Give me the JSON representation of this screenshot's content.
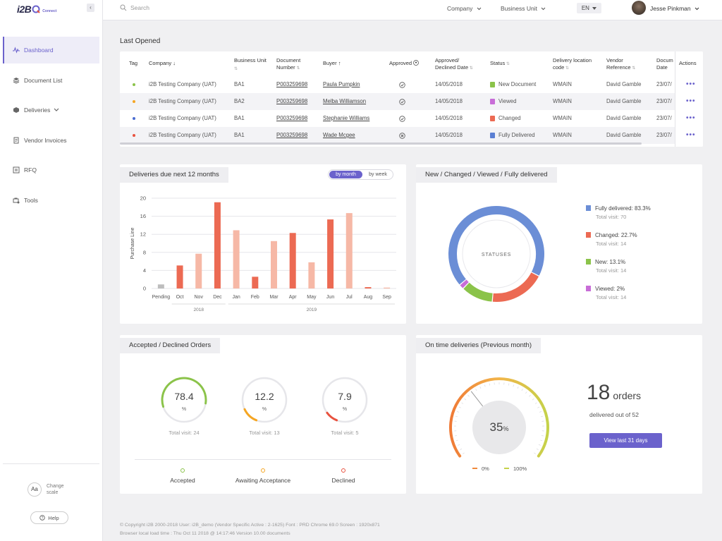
{
  "app": {
    "logo": "i2B",
    "logo_sub": "Connect",
    "collapse": "‹"
  },
  "sidebar": {
    "items": [
      {
        "label": "Dashboard",
        "icon": "pulse-icon",
        "active": true
      },
      {
        "label": "Document List",
        "icon": "stack-icon"
      },
      {
        "label": "Deliveries",
        "icon": "box-icon",
        "dropdown": true
      },
      {
        "label": "Vendor Invoices",
        "icon": "invoice-icon"
      },
      {
        "label": "RFQ",
        "icon": "rfq-icon"
      },
      {
        "label": "Tools",
        "icon": "tools-icon"
      }
    ],
    "scale_label": "Aa",
    "change_scale": "Change scale",
    "help": "Help"
  },
  "topbar": {
    "search_placeholder": "Search",
    "company": "Company",
    "business_unit": "Business Unit",
    "lang": "EN",
    "user": "Jesse Pinkman"
  },
  "last_opened": {
    "title": "Last Opened",
    "headers": {
      "tag": "Tag",
      "company": "Company",
      "business_unit": "Business Unit",
      "document_number": "Document Number",
      "buyer": "Buyer",
      "approved": "Approved",
      "approved_declined_date": "Approved/ Declined Date",
      "status": "Status",
      "delivery_location": "Delivery location code",
      "vendor_reference": "Vendor Reference",
      "document_date": "Docum Date",
      "actions": "Actions"
    },
    "rows": [
      {
        "tag_color": "#8bc34a",
        "company": "i2B Testing Company (UAT)",
        "bu": "BA1",
        "doc": "P003259698",
        "buyer": "Paula Pumpkin",
        "approved": "check",
        "date": "14/05/2018",
        "status": "New Document",
        "status_color": "#8bc34a",
        "location": "WMAIN",
        "vendor": "David Gamble",
        "docdate": "23/07/"
      },
      {
        "tag_color": "#f5a623",
        "company": "i2B Testing Company (UAT)",
        "bu": "BA2",
        "doc": "P003259698",
        "buyer": "Melba Williamson",
        "approved": "check",
        "date": "14/05/2018",
        "status": "Viewed",
        "status_color": "#c86dd7",
        "location": "WMAIN",
        "vendor": "David Gamble",
        "docdate": "23/07/"
      },
      {
        "tag_color": "#4a6cd1",
        "company": "i2B Testing Company (UAT)",
        "bu": "BA1",
        "doc": "P003259698",
        "buyer": "Stephanie Williams",
        "approved": "check",
        "date": "14/05/2018",
        "status": "Changed",
        "status_color": "#ec6a53",
        "location": "WMAIN",
        "vendor": "David Gamble",
        "docdate": "23/07/"
      },
      {
        "tag_color": "#e8523f",
        "company": "i2B Testing Company (UAT)",
        "bu": "BA1",
        "doc": "P003259698",
        "buyer": "Wade Mcgee",
        "approved": "cross",
        "date": "14/05/2018",
        "status": "Fully Delivered",
        "status_color": "#5b7fd3",
        "location": "WMAIN",
        "vendor": "David Gamble",
        "docdate": "23/07/"
      }
    ],
    "more": "•••"
  },
  "deliveries": {
    "title": "Deliveries due next 12 months",
    "toggle_on": "by month",
    "toggle_off": "by week"
  },
  "statuses": {
    "title": "New / Changed / Viewed / Fully delivered",
    "center": "STATUSES",
    "legend": [
      {
        "label": "Fully delivered: 83.3%",
        "sub": "Total visit: 70",
        "color": "#6b8ed6",
        "value": 83.3
      },
      {
        "label": "Changed: 22.7%",
        "sub": "Total visit: 14",
        "color": "#ec6a53",
        "value": 22.7
      },
      {
        "label": "New: 13.1%",
        "sub": "Total visit: 14",
        "color": "#8bc34a",
        "value": 13.1
      },
      {
        "label": "Viewed: 2%",
        "sub": "Total visit: 14",
        "color": "#c86dd7",
        "value": 2
      }
    ]
  },
  "accepted": {
    "title": "Accepted / Declined Orders",
    "gauges": [
      {
        "value": "78.4",
        "unit": "%",
        "sub": "Total visit: 24",
        "color": "#8bc34a",
        "fraction": 0.32
      },
      {
        "value": "12.2",
        "unit": "%",
        "sub": "Total visit: 13",
        "color": "#f5a623",
        "fraction": 0.12
      },
      {
        "value": "7.9",
        "unit": "%",
        "sub": "Total visit: 5",
        "color": "#e8523f",
        "fraction": 0.08
      }
    ],
    "legend": [
      {
        "label": "Accepted",
        "color": "#8bc34a"
      },
      {
        "label": "Awaiting Acceptance",
        "color": "#f5a623"
      },
      {
        "label": "Declined",
        "color": "#e8523f"
      }
    ]
  },
  "ontime": {
    "title": "On time deliveries (Previous month)",
    "percent": "35",
    "percent_unit": "%",
    "orders": "18",
    "orders_unit": "orders",
    "delivered": "delivered out of 52",
    "button": "View last 31 days",
    "legend_low": "0%",
    "legend_high": "100%"
  },
  "chart_data": {
    "type": "bar",
    "ylabel": "Purchase Line",
    "ylim": [
      0,
      20
    ],
    "yticks": [
      0,
      4,
      8,
      12,
      16,
      20
    ],
    "categories": [
      "Pending",
      "Oct",
      "Nov",
      "Dec",
      "Jan",
      "Feb",
      "Mar",
      "Apr",
      "May",
      "Jun",
      "Jul",
      "Aug",
      "Sep"
    ],
    "values": [
      0.9,
      5.1,
      7.7,
      19.1,
      12.9,
      2.6,
      10.5,
      12.3,
      5.8,
      15.3,
      16.7,
      0.3,
      0.2
    ],
    "colors": [
      "#bdbdbd",
      "#ec6a53",
      "#f6b8a6",
      "#ec6a53",
      "#f6b8a6",
      "#ec6a53",
      "#f6b8a6",
      "#ec6a53",
      "#f6b8a6",
      "#ec6a53",
      "#f6b8a6",
      "#ec6a53",
      "#f6b8a6"
    ],
    "groups": [
      {
        "label": "2018",
        "from": 1,
        "to": 3
      },
      {
        "label": "2019",
        "from": 4,
        "to": 12
      }
    ]
  },
  "footer": {
    "line1": "© Copyright i2B 2000-2018 User: i2B_demo  (Vendor Specific Active : 2-1625)  Font :  PRD Chrome 69.0  Screen : 1920x871",
    "line2": "Browser local load time : Thu Oct 11 2018 @ 14:17:46  Version 10.00 documents"
  }
}
